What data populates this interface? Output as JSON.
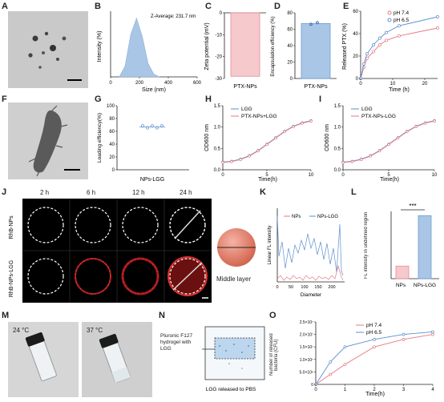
{
  "labels": {
    "A": "A",
    "B": "B",
    "C": "C",
    "D": "D",
    "E": "E",
    "F": "F",
    "G": "G",
    "H": "H",
    "I": "I",
    "J": "J",
    "K": "K",
    "L": "L",
    "M": "M",
    "N": "N",
    "O": "O"
  },
  "panel_b": {
    "annotation": "Z-Average: 231.7 nm",
    "xlabel": "Size (nm)",
    "ylabel": "Intensity (%)",
    "xticks": [
      "0",
      "200",
      "400",
      "600"
    ]
  },
  "panel_c": {
    "ylabel": "Zeta potential (mV)",
    "category": "PTX-NPs",
    "yticks": [
      "0",
      "-10",
      "-20",
      "-30"
    ]
  },
  "panel_d": {
    "ylabel": "Encapsulation efficiency (%)",
    "category": "PTX-NPs",
    "yticks": [
      "0",
      "20",
      "40",
      "60",
      "80"
    ]
  },
  "panel_e": {
    "ylabel": "Released PTX (%)",
    "xlabel": "Time (h)",
    "legend": [
      "pH 7.4",
      "pH 6.5"
    ],
    "yticks": [
      "0",
      "20",
      "40",
      "60"
    ],
    "xticks": [
      "0",
      "10",
      "20"
    ]
  },
  "panel_g": {
    "ylabel": "Loading efficiency(%)",
    "category": "NPs-LGG",
    "yticks": [
      "0",
      "20",
      "40",
      "60",
      "80",
      "100"
    ]
  },
  "panel_h": {
    "ylabel": "OD600 nm",
    "xlabel": "Time(h)",
    "legend": [
      "LGG",
      "PTX-NPs+LGG"
    ],
    "yticks": [
      "0.0",
      "0.5",
      "1.0",
      "1.5"
    ],
    "xticks": [
      "0",
      "5",
      "10"
    ]
  },
  "panel_i": {
    "ylabel": "OD600 nm",
    "xlabel": "Time(h)",
    "legend": [
      "LGG",
      "PTX-NPs-LGG"
    ],
    "yticks": [
      "0.0",
      "0.5",
      "1.0",
      "1.5"
    ],
    "xticks": [
      "0",
      "5",
      "10"
    ]
  },
  "panel_j": {
    "times": [
      "2 h",
      "6 h",
      "12 h",
      "24 h"
    ],
    "rows": [
      "RhB-NPs",
      "RhB-NPs-LGG"
    ],
    "sphere_caption": "Middle layer"
  },
  "panel_k": {
    "legend": [
      "NPs",
      "NPs-LGG"
    ],
    "xlabel": "Diameter",
    "ylabel": "Linear FL intensity",
    "xticks": [
      "0",
      "50",
      "100",
      "150",
      "200"
    ]
  },
  "panel_l": {
    "ylabel": "FL intensity in undefined region",
    "categories": [
      "NPs",
      "NPs-LGG"
    ],
    "significance": "***"
  },
  "panel_m": {
    "temps": [
      "24 °C",
      "37 °C"
    ]
  },
  "panel_n": {
    "gel_label": "Pluronic F127 hydrogel with LGG",
    "caption": "LGG released to PBS"
  },
  "panel_o": {
    "ylabel": "Number of released bacteria (CFU)",
    "xlabel": "Time(h)",
    "legend": [
      "pH 7.4",
      "pH 6.5"
    ],
    "yticks": [
      "0",
      "5.0×10⁶",
      "1.0×10⁷",
      "1.5×10⁷",
      "2.0×10⁷",
      "2.5×10⁷"
    ],
    "xticks": [
      "0",
      "1",
      "2",
      "3",
      "4"
    ]
  },
  "chart_data": [
    {
      "panel": "B",
      "type": "area",
      "x": [
        60,
        100,
        140,
        180,
        220,
        260,
        300,
        340
      ],
      "values": [
        0,
        4,
        16,
        22,
        15,
        5,
        1,
        0
      ],
      "xlim": [
        0,
        600
      ],
      "xlabel": "Size (nm)",
      "ylabel": "Intensity (%)"
    },
    {
      "panel": "C",
      "type": "bar",
      "categories": [
        "PTX-NPs"
      ],
      "values": [
        -29
      ],
      "ylim": [
        -30,
        0
      ],
      "ylabel": "Zeta potential (mV)"
    },
    {
      "panel": "D",
      "type": "bar",
      "categories": [
        "PTX-NPs"
      ],
      "values": [
        67
      ],
      "ylim": [
        0,
        80
      ],
      "ylabel": "Encapsulation efficiency (%)"
    },
    {
      "panel": "E",
      "type": "line",
      "x": [
        0,
        1,
        2,
        4,
        6,
        8,
        12,
        24
      ],
      "series": [
        {
          "name": "pH 7.4",
          "values": [
            0,
            10,
            18,
            24,
            30,
            34,
            38,
            45
          ]
        },
        {
          "name": "pH 6.5",
          "values": [
            0,
            13,
            22,
            30,
            36,
            41,
            47,
            55
          ]
        }
      ],
      "xlabel": "Time (h)",
      "ylabel": "Released PTX (%)",
      "ylim": [
        0,
        60
      ]
    },
    {
      "panel": "G",
      "type": "scatter",
      "categories": [
        "NPs-LGG"
      ],
      "values": [
        67
      ],
      "ylim": [
        0,
        100
      ],
      "ylabel": "Loading efficiency(%)"
    },
    {
      "panel": "H",
      "type": "line",
      "x": [
        0,
        1,
        2,
        3,
        4,
        5,
        6,
        7,
        8,
        9,
        10
      ],
      "series": [
        {
          "name": "LGG",
          "values": [
            0.18,
            0.2,
            0.25,
            0.33,
            0.45,
            0.6,
            0.75,
            0.9,
            1.02,
            1.1,
            1.15
          ]
        },
        {
          "name": "PTX-NPs+LGG",
          "values": [
            0.17,
            0.19,
            0.24,
            0.32,
            0.44,
            0.59,
            0.74,
            0.89,
            1.01,
            1.09,
            1.14
          ]
        }
      ],
      "xlabel": "Time(h)",
      "ylabel": "OD600 nm",
      "ylim": [
        0,
        1.5
      ]
    },
    {
      "panel": "I",
      "type": "line",
      "x": [
        0,
        1,
        2,
        3,
        4,
        5,
        6,
        7,
        8,
        9,
        10
      ],
      "series": [
        {
          "name": "LGG",
          "values": [
            0.18,
            0.2,
            0.25,
            0.33,
            0.45,
            0.6,
            0.75,
            0.9,
            1.02,
            1.1,
            1.15
          ]
        },
        {
          "name": "PTX-NPs-LGG",
          "values": [
            0.17,
            0.19,
            0.24,
            0.32,
            0.44,
            0.59,
            0.74,
            0.89,
            1.01,
            1.09,
            1.14
          ]
        }
      ],
      "xlabel": "Time(h)",
      "ylabel": "OD600 nm",
      "ylim": [
        0,
        1.5
      ]
    },
    {
      "panel": "L",
      "type": "bar",
      "categories": [
        "NPs",
        "NPs-LGG"
      ],
      "values": [
        15,
        75
      ],
      "ylim": [
        0,
        80
      ]
    },
    {
      "panel": "O",
      "type": "line",
      "x": [
        0,
        0.5,
        1,
        2,
        3,
        4
      ],
      "series": [
        {
          "name": "pH 7.4",
          "values": [
            0,
            4000000,
            8000000,
            15000000,
            18000000,
            20000000
          ]
        },
        {
          "name": "pH 6.5",
          "values": [
            0,
            9000000,
            15000000,
            18000000,
            20000000,
            21000000
          ]
        }
      ],
      "xlabel": "Time(h)",
      "ylim": [
        0,
        25000000
      ]
    }
  ]
}
